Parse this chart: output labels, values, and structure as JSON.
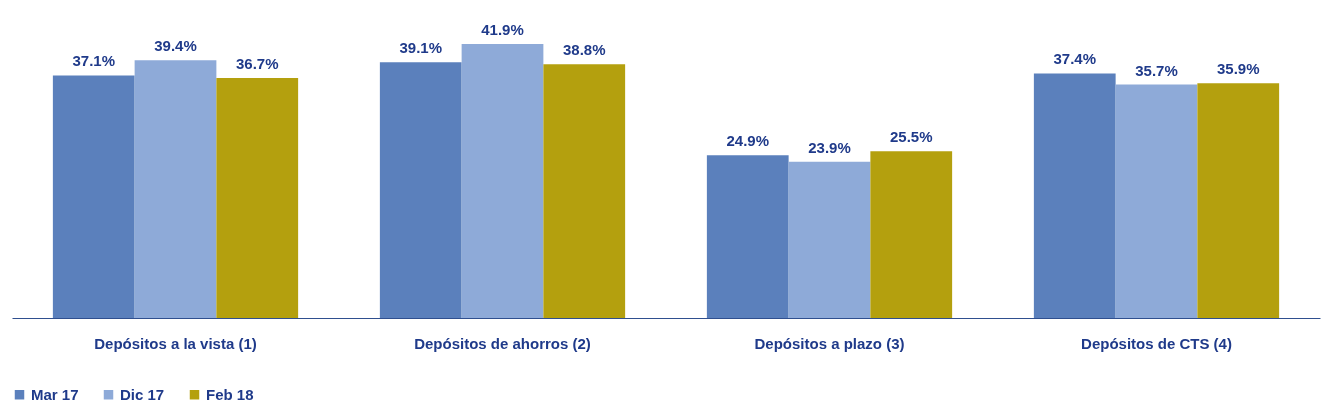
{
  "chart_data": {
    "type": "bar",
    "categories": [
      "Depósitos a la vista (1)",
      "Depósitos de ahorros (2)",
      "Depósitos a plazo (3)",
      "Depósitos de CTS (4)"
    ],
    "series": [
      {
        "name": "Mar 17",
        "color": "#5b80bc",
        "values": [
          37.1,
          39.1,
          24.9,
          37.4
        ],
        "value_labels": [
          "37.1%",
          "39.1%",
          "24.9%",
          "37.4%"
        ]
      },
      {
        "name": "Dic 17",
        "color": "#8eaad8",
        "values": [
          39.4,
          41.9,
          23.9,
          35.7
        ],
        "value_labels": [
          "39.4%",
          "41.9%",
          "23.9%",
          "35.7%"
        ]
      },
      {
        "name": "Feb 18",
        "color": "#b4a00e",
        "values": [
          36.7,
          38.8,
          25.5,
          35.9
        ],
        "value_labels": [
          "36.7%",
          "38.8%",
          "25.5%",
          "35.9%"
        ]
      }
    ],
    "legend": "bottom"
  }
}
